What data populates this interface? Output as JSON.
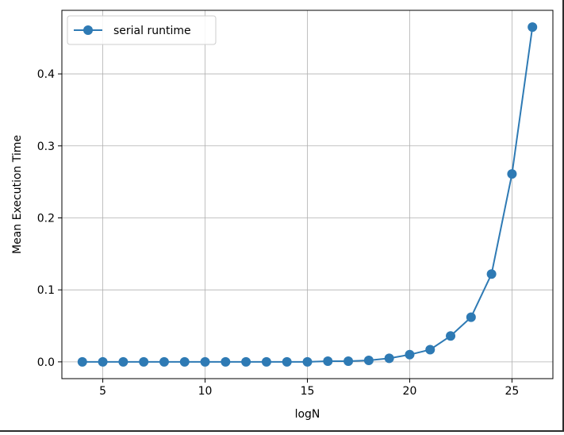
{
  "chart_data": {
    "type": "line",
    "title": "",
    "xlabel": "logN",
    "ylabel": "Mean Execution Time",
    "xlim": [
      3.0,
      27.0
    ],
    "ylim": [
      -0.0233,
      0.4883
    ],
    "xticks": [
      5,
      10,
      15,
      20,
      25
    ],
    "yticks": [
      0.0,
      0.1,
      0.2,
      0.3,
      0.4
    ],
    "xtick_labels": [
      "5",
      "10",
      "15",
      "20",
      "25"
    ],
    "ytick_labels": [
      "0.0",
      "0.1",
      "0.2",
      "0.3",
      "0.4"
    ],
    "grid": true,
    "legend": {
      "placement": "top-left",
      "entries": [
        "serial runtime"
      ]
    },
    "series": [
      {
        "name": "serial runtime",
        "color": "#2e7ab4",
        "marker": "circle",
        "x": [
          4,
          5,
          6,
          7,
          8,
          9,
          10,
          11,
          12,
          13,
          14,
          15,
          16,
          17,
          18,
          19,
          20,
          21,
          22,
          23,
          24,
          25,
          26
        ],
        "y": [
          0.0,
          0.0,
          0.0,
          0.0,
          0.0,
          0.0,
          0.0,
          0.0,
          0.0,
          0.0,
          0.0,
          0.0,
          0.001,
          0.001,
          0.002,
          0.005,
          0.01,
          0.017,
          0.036,
          0.062,
          0.122,
          0.261,
          0.465
        ]
      }
    ]
  }
}
